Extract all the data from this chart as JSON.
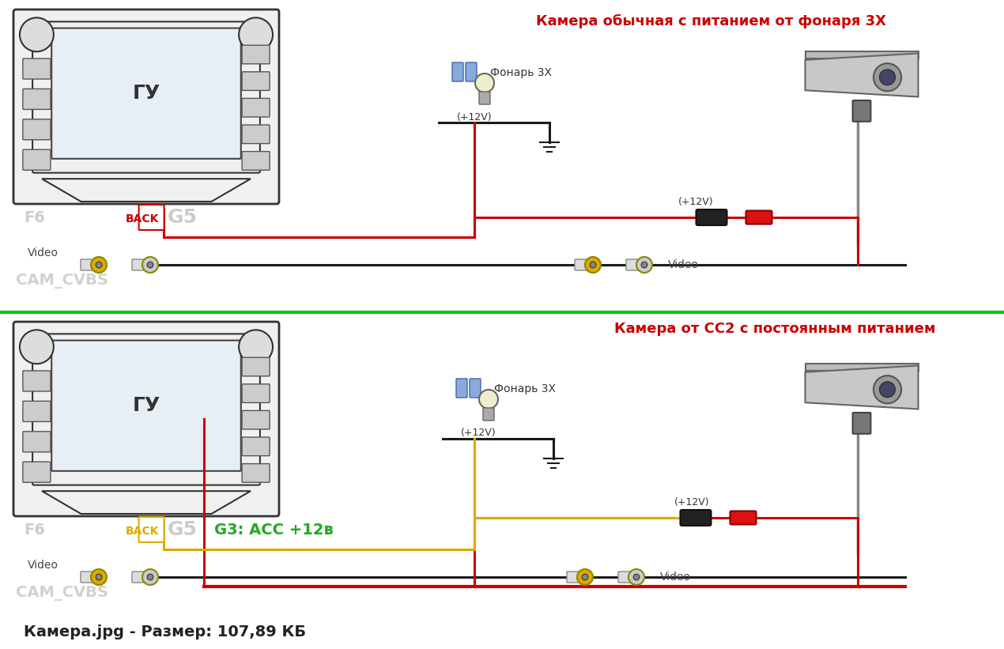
{
  "bg_color": "#ffffff",
  "title_top": "Камера обычная с питанием от фонаря 3Х",
  "title_bottom": "Камера от СС2 с постоянным питанием",
  "title_color": "#cc0000",
  "bottom_text": "Камера.jpg - Размер: 107,89 КБ",
  "bottom_text_color": "#222222",
  "divider_color": "#00cc00",
  "label_gu": "ГУ",
  "label_f6": "F6",
  "label_back": "BACK",
  "label_g5": "G5",
  "label_g3": "G3: АСС +12в",
  "label_video_left": "Video",
  "label_video_right": "Video",
  "label_cam_cvbs": "CAM_CVBS",
  "label_fonar": "Фонарь 3Х",
  "label_12v_fonar": "(+12V)",
  "label_12v_cam": "(+12V)",
  "wire_black": "#1a1a1a",
  "wire_red": "#cc0000",
  "wire_yellow": "#ddaa00",
  "connector_yellow": "#ddaa00",
  "connector_gray": "#888888",
  "hu_edge": "#333333",
  "hu_face": "#f0f0f0",
  "screen_face": "#e8eef5",
  "screen_edge": "#444444"
}
